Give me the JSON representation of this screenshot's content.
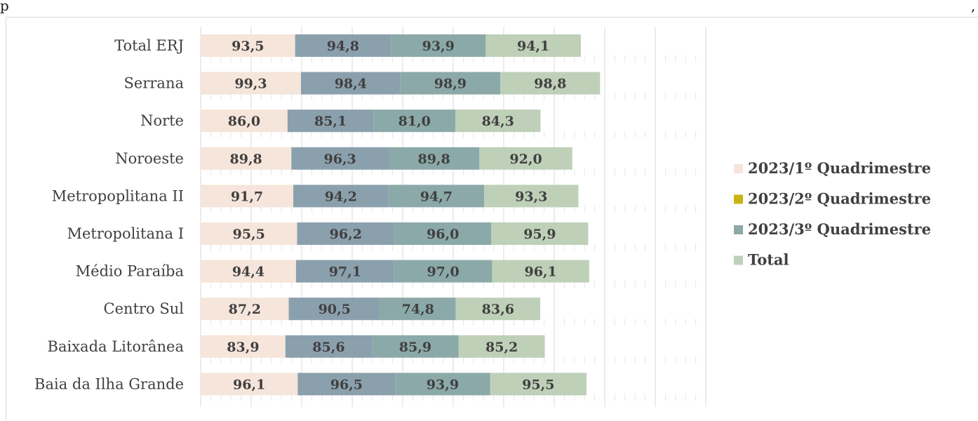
{
  "page_fragment": {
    "left_text": "p",
    "right_text": ","
  },
  "chart_data": {
    "type": "bar",
    "orientation": "horizontal",
    "stacked": true,
    "categories": [
      "Total ERJ",
      "Serrana",
      "Norte",
      "Noroeste",
      "Metropoplitana II",
      "Metropolitana  I",
      "Médio Paraíba",
      "Centro Sul",
      "Baixada Litorânea",
      "Baia da Ilha Grande"
    ],
    "series": [
      {
        "name": "2023/1º Quadrimestre",
        "color": "#f6e5da",
        "values": [
          93.5,
          99.3,
          86.0,
          89.8,
          91.7,
          95.5,
          94.4,
          87.2,
          83.9,
          96.1
        ],
        "labels": [
          "93,5",
          "99,3",
          "86,0",
          "89,8",
          "91,7",
          "95,5",
          "94,4",
          "87,2",
          "83,9",
          "96,1"
        ]
      },
      {
        "name": "2023/2º Quadrimestre",
        "color": "#8ba0ad",
        "legend_color": "#c8b411",
        "values": [
          94.8,
          98.4,
          85.1,
          96.3,
          94.2,
          96.2,
          97.1,
          90.5,
          85.6,
          96.5
        ],
        "labels": [
          "94,8",
          "98,4",
          "85,1",
          "96,3",
          "94,2",
          "96,2",
          "97,1",
          "90,5",
          "85,6",
          "96,5"
        ]
      },
      {
        "name": "2023/3º Quadrimestre",
        "color": "#8ba9a8",
        "values": [
          93.9,
          98.9,
          81.0,
          89.8,
          94.7,
          96.0,
          97.0,
          74.8,
          85.9,
          93.9
        ],
        "labels": [
          "93,9",
          "98,9",
          "81,0",
          "89,8",
          "94,7",
          "96,0",
          "97,0",
          "74,8",
          "85,9",
          "93,9"
        ]
      },
      {
        "name": "Total",
        "color": "#bed0b8",
        "values": [
          94.1,
          98.8,
          84.3,
          92.0,
          93.3,
          95.9,
          96.1,
          83.6,
          85.2,
          95.5
        ],
        "labels": [
          "94,1",
          "98,8",
          "84,3",
          "92,0",
          "93,3",
          "95,9",
          "96,1",
          "83,6",
          "85,2",
          "95,5"
        ]
      }
    ],
    "xlim": [
      0,
      500
    ],
    "grid": true,
    "x_tick_labels_visible": false,
    "legend_position": "right"
  }
}
